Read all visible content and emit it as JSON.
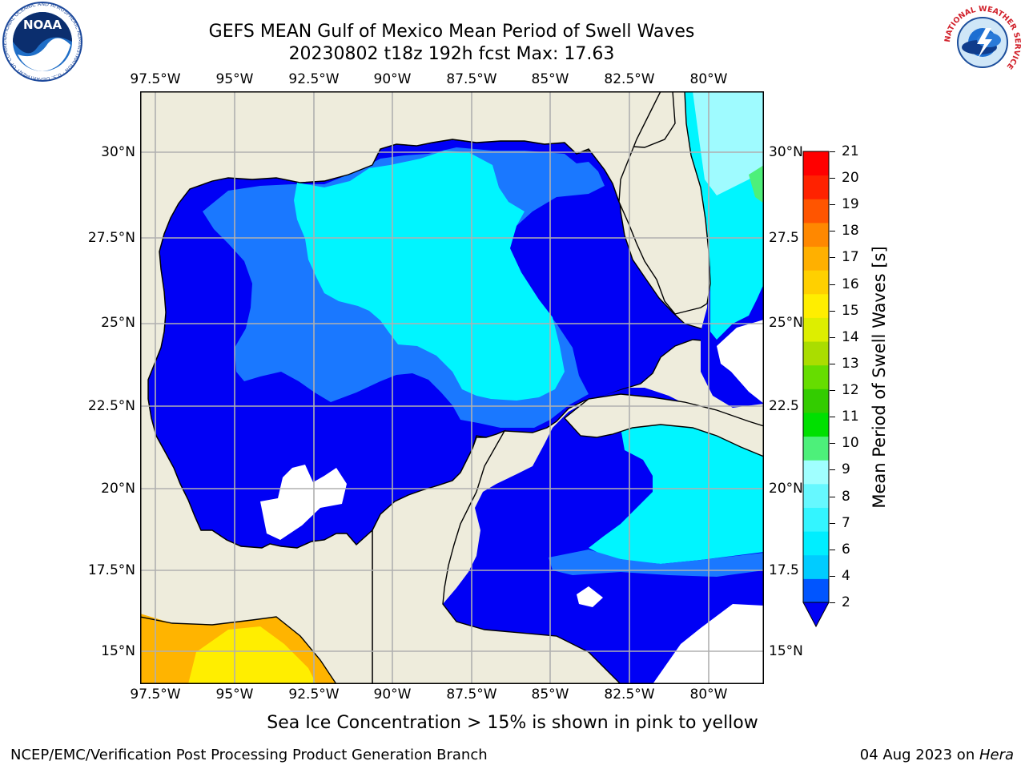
{
  "title": {
    "line1": "GEFS MEAN Gulf of Mexico Mean Period of Swell Waves",
    "line2": "20230802 t18z 192h fcst   Max: 17.63"
  },
  "logos": {
    "left": {
      "name": "noaa-logo",
      "text": "NOAA",
      "ring_text": "NATIONAL OCEANIC AND ATMOSPHERIC ADMINISTRATION · U.S. DEPARTMENT OF COMMERCE"
    },
    "right": {
      "name": "nws-logo",
      "ring_text": "NATIONAL WEATHER SERVICE"
    }
  },
  "map": {
    "lon_labels": [
      "97.5°W",
      "95°W",
      "92.5°W",
      "90°W",
      "87.5°W",
      "85°W",
      "82.5°W",
      "80°W"
    ],
    "lat_labels_left": [
      "30°N",
      "27.5°N",
      "25°N",
      "22.5°N",
      "20°N",
      "17.5°N",
      "15°N"
    ],
    "lat_labels_right": [
      "30°N",
      "27.5",
      "25°N",
      "22.5",
      "20°N",
      "17.5",
      "15°N"
    ],
    "colors": {
      "land": "#eeecdc",
      "ocean_2_4": "#0000f5",
      "period_4_6": "#1a78ff",
      "period_6_8": "#00f5ff",
      "period_8_10": "#9ffbff",
      "ice_orange": "#ffb400",
      "ice_yellow": "#ffee00",
      "grid": "#b0b0b0",
      "coast": "#000000"
    }
  },
  "colorbar": {
    "label": "Mean Period of Swell Waves [s]",
    "ticks": [
      "2",
      "4",
      "6",
      "7",
      "8",
      "9",
      "10",
      "11",
      "12",
      "13",
      "14",
      "15",
      "16",
      "17",
      "18",
      "19",
      "20",
      "21"
    ],
    "colors": [
      "#0055ff",
      "#00ccff",
      "#00eeff",
      "#33f5ff",
      "#66f8ff",
      "#a0ffff",
      "#4df07a",
      "#00e000",
      "#33cc00",
      "#66dd00",
      "#aadd00",
      "#ddee00",
      "#ffee00",
      "#ffd000",
      "#ffb000",
      "#ff8800",
      "#ff5500",
      "#ff2200",
      "#ff0000"
    ]
  },
  "ice_note": "Sea Ice Concentration > 15% is shown in pink to yellow",
  "footer": {
    "left": "NCEP/EMC/Verification Post Processing Product Generation Branch",
    "right_date": "04 Aug 2023 on ",
    "right_host": "Hera"
  }
}
